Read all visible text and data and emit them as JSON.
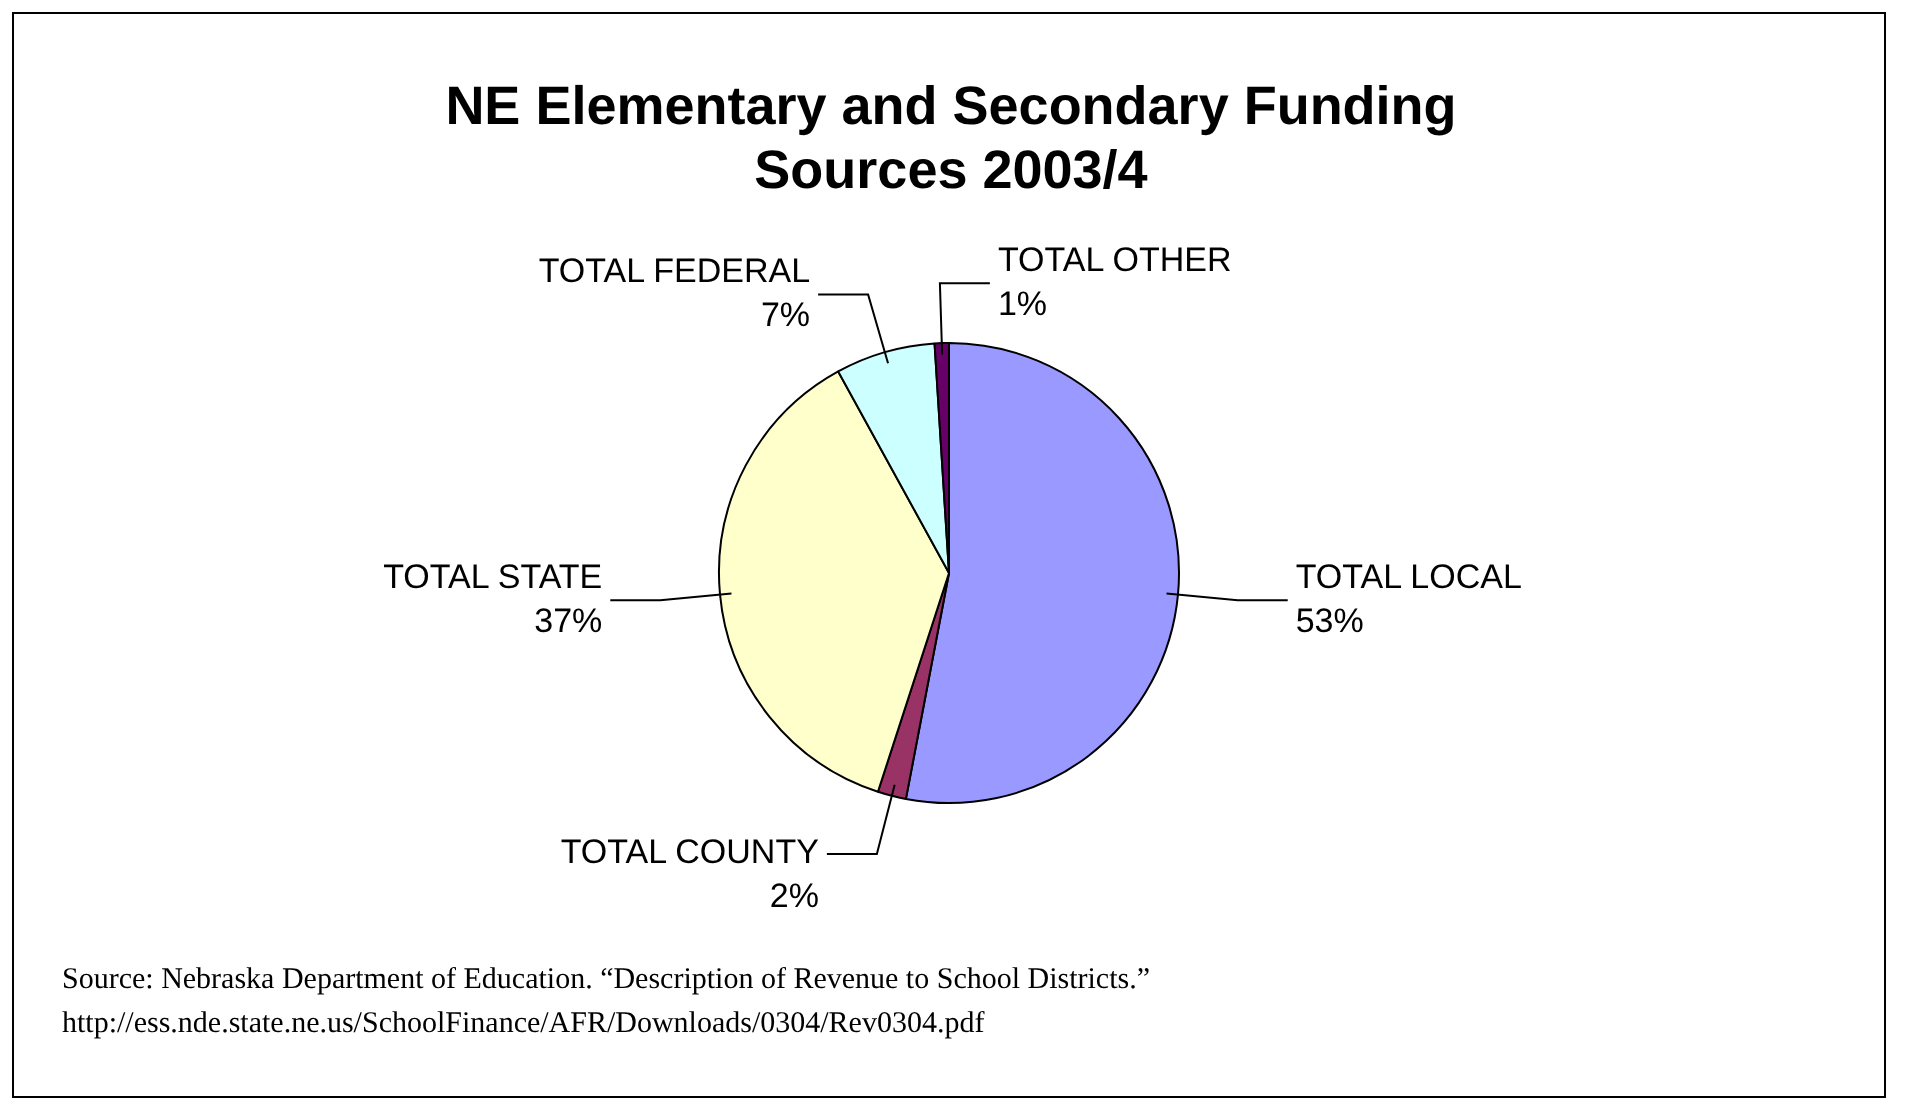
{
  "chart_data": {
    "type": "pie",
    "title": "NE Elementary and Secondary Funding Sources 2003/4",
    "categories": [
      "TOTAL LOCAL",
      "TOTAL COUNTY",
      "TOTAL STATE",
      "TOTAL FEDERAL",
      "TOTAL OTHER"
    ],
    "values": [
      53,
      2,
      37,
      7,
      1
    ],
    "value_labels": [
      "53%",
      "2%",
      "37%",
      "7%",
      "1%"
    ],
    "colors": [
      "#9999ff",
      "#993366",
      "#ffffcc",
      "#ccffff",
      "#660066"
    ],
    "legend": false,
    "annotations": [
      "Source: Nebraska Department of Education. “Description of Revenue to School Districts.”",
      "http://ess.nde.state.ne.us/SchoolFinance/AFR/Downloads/0304/Rev0304.pdf"
    ]
  }
}
